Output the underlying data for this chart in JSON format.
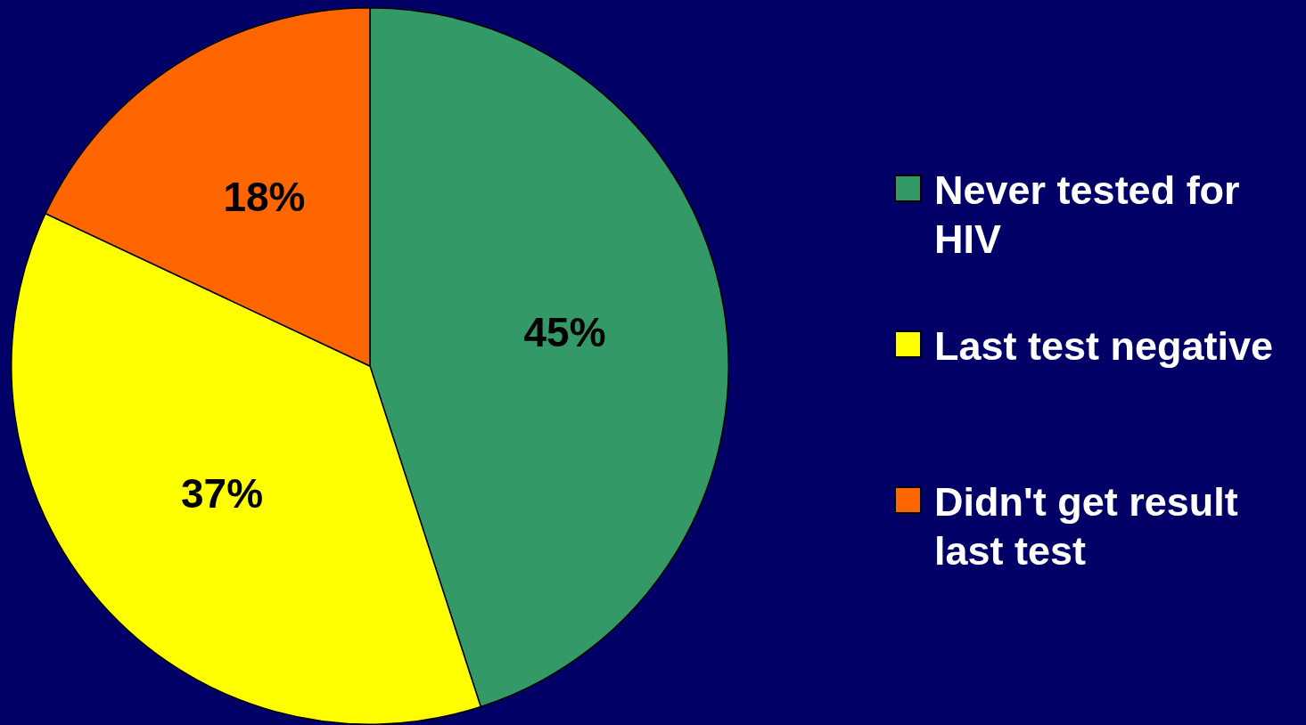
{
  "chart_data": {
    "type": "pie",
    "categories": [
      "Never tested for HIV",
      "Last test negative",
      "Didn't get result last test"
    ],
    "values": [
      45,
      37,
      18
    ],
    "colors": [
      "#339966",
      "#ffff00",
      "#ff6600"
    ],
    "value_labels": [
      "45%",
      "37%",
      "18%"
    ],
    "legend": "right"
  }
}
